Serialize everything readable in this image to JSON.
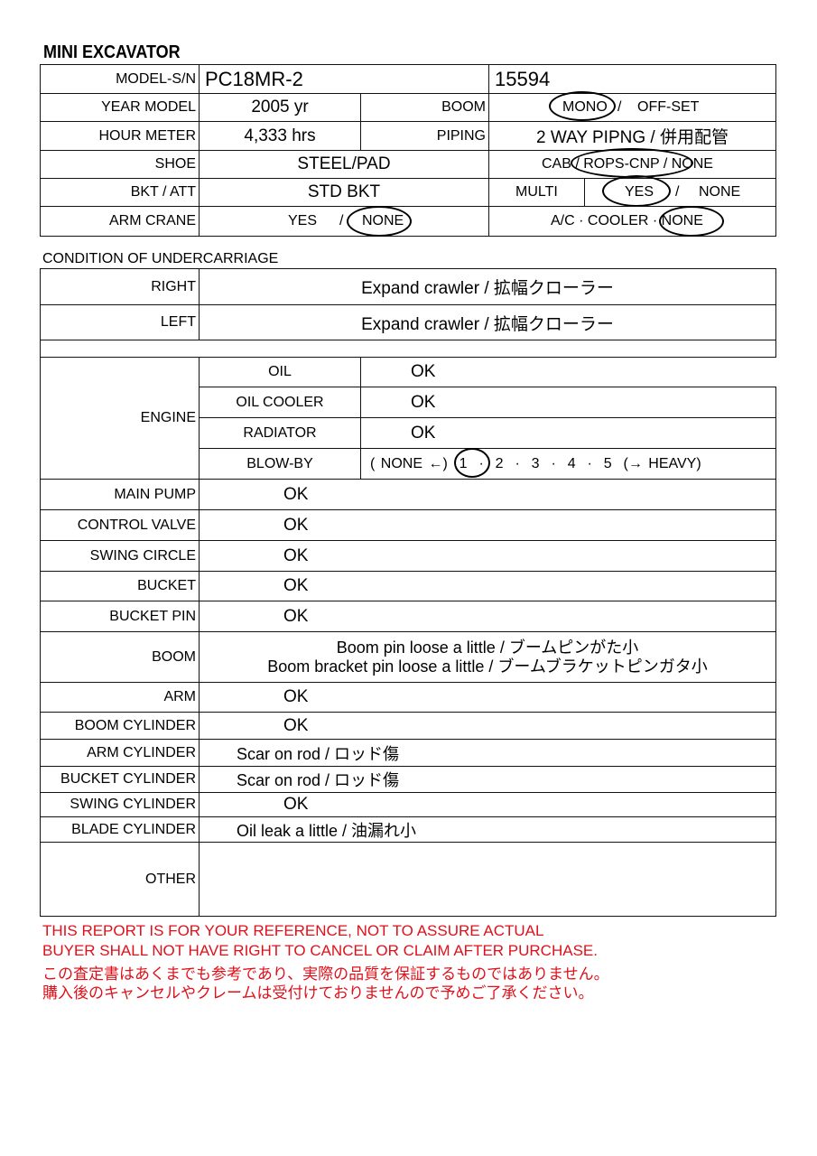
{
  "title": "MINI EXCAVATOR",
  "top": {
    "model_label": "MODEL-S/N",
    "model": "PC18MR-2",
    "serial": "15594",
    "year_label": "YEAR MODEL",
    "year": "2005 yr",
    "boom_label": "BOOM",
    "boom_opt1": "MONO",
    "boom_sep": "/",
    "boom_opt2": "OFF-SET",
    "hour_label": "HOUR METER",
    "hours": "4,333 hrs",
    "piping_label": "PIPING",
    "piping": "2 WAY PIPNG / 併用配管",
    "shoe_label": "SHOE",
    "shoe": "STEEL/PAD",
    "cab_text": "CAB / ROPS-CNP / NONE",
    "bkt_label": "BKT / ATT",
    "bkt": "STD BKT",
    "multi_label": "MULTI",
    "multi_yes": "YES",
    "multi_sep": "/",
    "multi_none": "NONE",
    "armcrane_label": "ARM CRANE",
    "armcrane_yes": "YES",
    "armcrane_sep": "/",
    "armcrane_none": "NONE",
    "ac_text": "A/C · COOLER · NONE"
  },
  "selected": {
    "boom": "MONO",
    "cab": "ROPS-CNP",
    "multi": "YES",
    "arm_crane": "NONE",
    "ac": "NONE",
    "blow_by": 1
  },
  "undercarriage": {
    "heading": "CONDITION OF UNDERCARRIAGE",
    "right_label": "RIGHT",
    "right": "Expand crawler / 拡幅クローラー",
    "left_label": "LEFT",
    "left": "Expand crawler / 拡幅クローラー"
  },
  "engine": {
    "label": "ENGINE",
    "rows": [
      {
        "label": "OIL",
        "value": "OK"
      },
      {
        "label": "OIL COOLER",
        "value": "OK"
      },
      {
        "label": "RADIATOR",
        "value": "OK"
      }
    ],
    "blowby_label": "BLOW-BY",
    "blowby_scale": "( NONE ←)  1  ·  2  ·  3  ·  4  ·  5  (→ HEAVY)"
  },
  "items": [
    {
      "label": "MAIN PUMP",
      "value": "OK"
    },
    {
      "label": "CONTROL VALVE",
      "value": "OK"
    },
    {
      "label": "SWING CIRCLE",
      "value": "OK"
    },
    {
      "label": "BUCKET",
      "value": "OK"
    },
    {
      "label": "BUCKET PIN",
      "value": "OK"
    }
  ],
  "boom": {
    "label": "BOOM",
    "line1": "Boom pin loose a little / ブームピンがた小",
    "line2": "Boom bracket pin loose a little / ブームブラケットピンガタ小"
  },
  "items2": [
    {
      "label": "ARM",
      "value": "OK"
    },
    {
      "label": "BOOM CYLINDER",
      "value": "OK"
    },
    {
      "label": "ARM CYLINDER",
      "value": "Scar on rod / ロッド傷"
    },
    {
      "label": "BUCKET CYLINDER",
      "value": "Scar on rod / ロッド傷"
    },
    {
      "label": "SWING CYLINDER",
      "value": "OK"
    },
    {
      "label": "BLADE CYLINDER",
      "value": "Oil leak a little / 油漏れ小"
    }
  ],
  "other_label": "OTHER",
  "disclaimer": [
    "THIS REPORT IS FOR YOUR REFERENCE, NOT TO ASSURE ACTUAL",
    "BUYER SHALL NOT HAVE RIGHT TO CANCEL OR CLAIM AFTER PURCHASE.",
    "この査定書はあくまでも参考であり、実際の品質を保証するものではありません。",
    "購入後のキャンセルやクレームは受付けておりませんので予めご了承ください。"
  ],
  "colors": {
    "disclaimer": "#e0101a"
  }
}
